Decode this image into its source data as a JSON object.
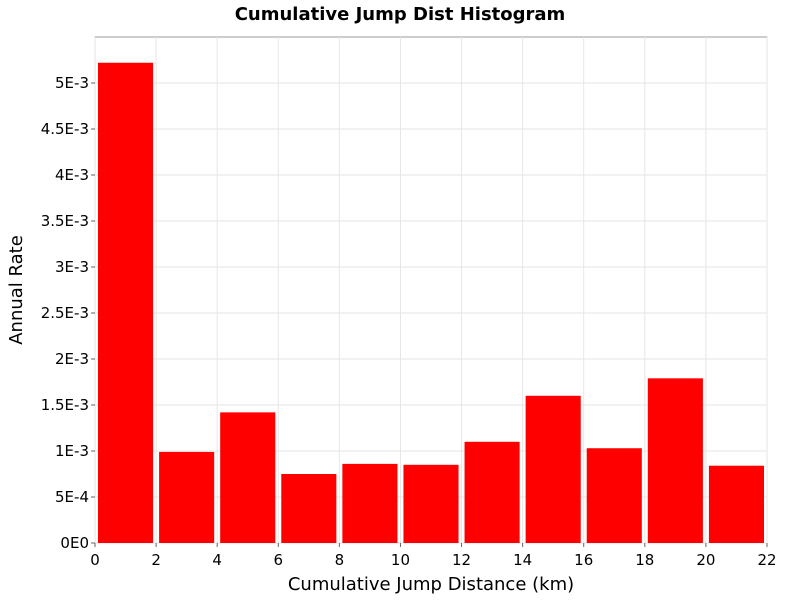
{
  "chart_data": {
    "type": "bar",
    "title": "Cumulative Jump Dist Histogram",
    "xlabel": "Cumulative Jump Distance (km)",
    "ylabel": "Annual Rate",
    "xlim": [
      0,
      22
    ],
    "ylim": [
      0,
      0.0055
    ],
    "x_ticks": [
      "0",
      "2",
      "4",
      "6",
      "8",
      "10",
      "12",
      "14",
      "16",
      "18",
      "20",
      "22"
    ],
    "x_tick_values": [
      0,
      2,
      4,
      6,
      8,
      10,
      12,
      14,
      16,
      18,
      20,
      22
    ],
    "y_ticks": [
      "0E0",
      "5E-4",
      "1E-3",
      "1.5E-3",
      "2E-3",
      "2.5E-3",
      "3E-3",
      "3.5E-3",
      "4E-3",
      "4.5E-3",
      "5E-3"
    ],
    "y_tick_values": [
      0,
      0.0005,
      0.001,
      0.0015,
      0.002,
      0.0025,
      0.003,
      0.0035,
      0.004,
      0.0045,
      0.005
    ],
    "bin_width": 2,
    "bin_starts": [
      0,
      2,
      4,
      6,
      8,
      10,
      12,
      14,
      16,
      18,
      20
    ],
    "values": [
      0.00522,
      0.00099,
      0.00142,
      0.00075,
      0.00086,
      0.00085,
      0.0011,
      0.0016,
      0.00103,
      0.00179,
      0.00084
    ],
    "bar_color": "#ff0000",
    "grid": true
  }
}
